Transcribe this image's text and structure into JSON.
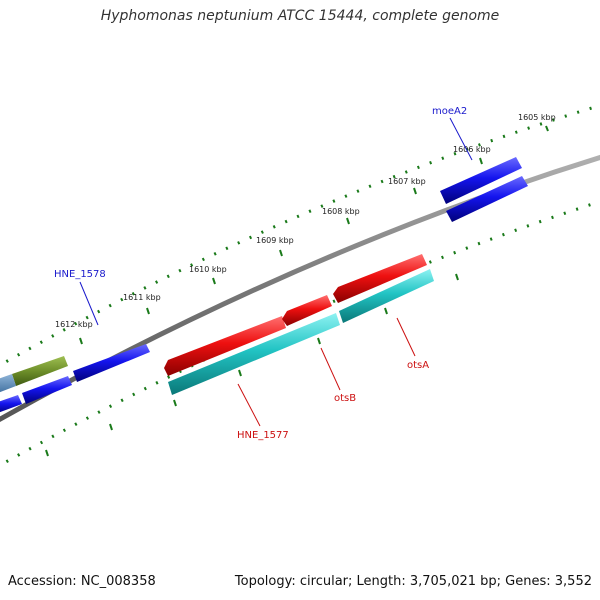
{
  "title": "Hyphomonas neptunium ATCC 15444, complete genome",
  "footer": {
    "accession": "Accession: NC_008358",
    "summary": "Topology: circular; Length: 3,705,021 bp; Genes: 3,552"
  },
  "ticks": [
    "1605 kbp",
    "1606 kbp",
    "1607 kbp",
    "1608 kbp",
    "1609 kbp",
    "1610 kbp",
    "1611 kbp",
    "1612 kbp"
  ],
  "gene_labels": {
    "moeA2": "moeA2",
    "hne1578": "HNE_1578",
    "hne1577": "HNE_1577",
    "otsB": "otsB",
    "otsA": "otsA"
  },
  "colors": {
    "forward_gene": "#0a0ae6",
    "reverse_gene": "#e01010",
    "rna_track": "#20c8c8",
    "olive_gene": "#6e8f2a",
    "tick": "#1a7a1a",
    "backbone": "#888888",
    "label_blue": "#1a1acc",
    "label_red": "#cc1010"
  }
}
